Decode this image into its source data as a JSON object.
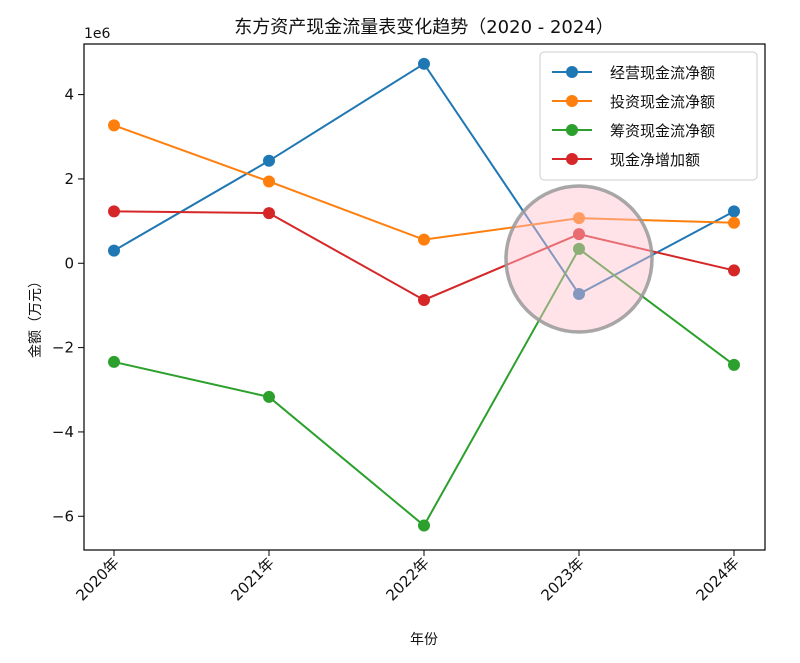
{
  "chart_data": {
    "type": "line",
    "title": "东方资产现金流量表变化趋势（2020 - 2024）",
    "xlabel": "年份",
    "ylabel": "金额（万元）",
    "y_scale_label": "1e6",
    "categories": [
      "2020年",
      "2021年",
      "2022年",
      "2023年",
      "2024年"
    ],
    "y_ticks": [
      {
        "value": 4000000,
        "label": "4"
      },
      {
        "value": 2000000,
        "label": "2"
      },
      {
        "value": 0,
        "label": "0"
      },
      {
        "value": -2000000,
        "label": "−2"
      },
      {
        "value": -4000000,
        "label": "−4"
      },
      {
        "value": -6000000,
        "label": "−6"
      }
    ],
    "ylim": [
      -6800000,
      5200000
    ],
    "grid": false,
    "legend_position": "top-right",
    "series": [
      {
        "name": "经营现金流净额",
        "color": "#1f77b4",
        "values": [
          300000,
          2430000,
          4730000,
          -730000,
          1230000
        ]
      },
      {
        "name": "投资现金流净额",
        "color": "#ff7f0e",
        "values": [
          3270000,
          1940000,
          560000,
          1070000,
          960000
        ]
      },
      {
        "name": "筹资现金流净额",
        "color": "#2ca02c",
        "values": [
          -2340000,
          -3170000,
          -6220000,
          340000,
          -2410000
        ]
      },
      {
        "name": "现金净增加额",
        "color": "#d62728",
        "values": [
          1230000,
          1190000,
          -870000,
          690000,
          -170000
        ]
      }
    ],
    "highlight": {
      "category_index": 3,
      "fill": "#ffc0cb",
      "stroke": "#999999"
    }
  }
}
